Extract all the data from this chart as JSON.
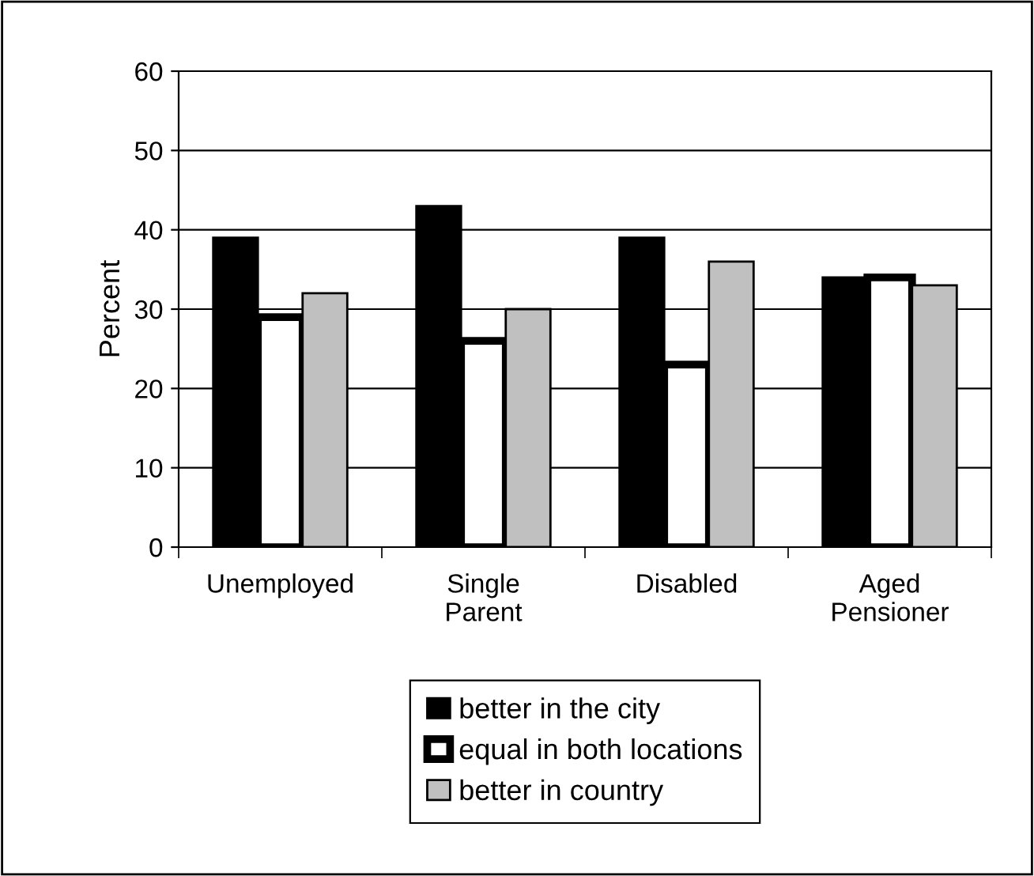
{
  "chart_data": {
    "type": "bar",
    "ylabel": "Percent",
    "categories": [
      "Unemployed",
      "Single\nParent",
      "Disabled",
      "Aged\nPensioner"
    ],
    "series": [
      {
        "name": "better in the city",
        "color": "#000000",
        "values": [
          39,
          43,
          39,
          34
        ]
      },
      {
        "name": "equal in both locations",
        "color": "#ffffff",
        "values": [
          29,
          26,
          23,
          34
        ]
      },
      {
        "name": "better in country",
        "color": "#c0c0c0",
        "values": [
          32,
          30,
          36,
          33
        ]
      }
    ],
    "ylim": [
      0,
      60
    ],
    "yticks": [
      0,
      10,
      20,
      30,
      40,
      50,
      60
    ],
    "grid": "y",
    "legend": "bottom"
  }
}
